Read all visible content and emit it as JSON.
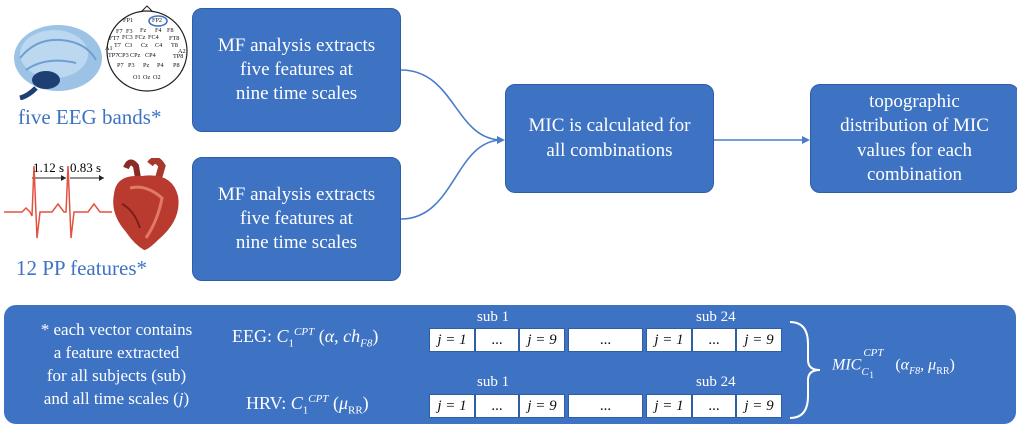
{
  "top_left": {
    "eeg_label": "five EEG bands*",
    "pp_label": "12 PP features*",
    "electrodes": [
      "FP1",
      "FP2",
      "F7",
      "F3",
      "Fz",
      "F4",
      "F8",
      "FT7",
      "FC3",
      "FCz",
      "FC4",
      "FT8",
      "A1",
      "T7",
      "C3",
      "Cz",
      "C4",
      "T8",
      "A2",
      "TP7",
      "CP3",
      "CPz",
      "CP4",
      "TP8",
      "P7",
      "P3",
      "Pz",
      "P4",
      "P8",
      "O1",
      "Oz",
      "O2"
    ],
    "interval_1": "1.12 s",
    "interval_2": "0.83 s"
  },
  "boxes": {
    "mf_top": "MF analysis extracts\nfive features at\nnine time scales",
    "mf_bottom": "MF analysis extracts\nfive features at\nnine time scales",
    "mic": "MIC is calculated for\nall combinations",
    "topo": "topographic\ndistribution of MIC\nvalues for each\ncombination"
  },
  "banner": {
    "note_lines": [
      "* each vector contains",
      "a feature extracted",
      "for all subjects (sub)",
      "and all time scales ("
    ],
    "note_j": "j",
    "note_close": ")",
    "eeg_prefix": "EEG: ",
    "hrv_prefix": "HRV: ",
    "sub1": "sub 1",
    "sub24": "sub 24",
    "cells": [
      "j = 1",
      "...",
      "j = 9",
      "...",
      "j = 1",
      "...",
      "j = 9"
    ]
  },
  "colors": {
    "accent": "#3e73c4",
    "arrow": "#4a7ccb"
  }
}
